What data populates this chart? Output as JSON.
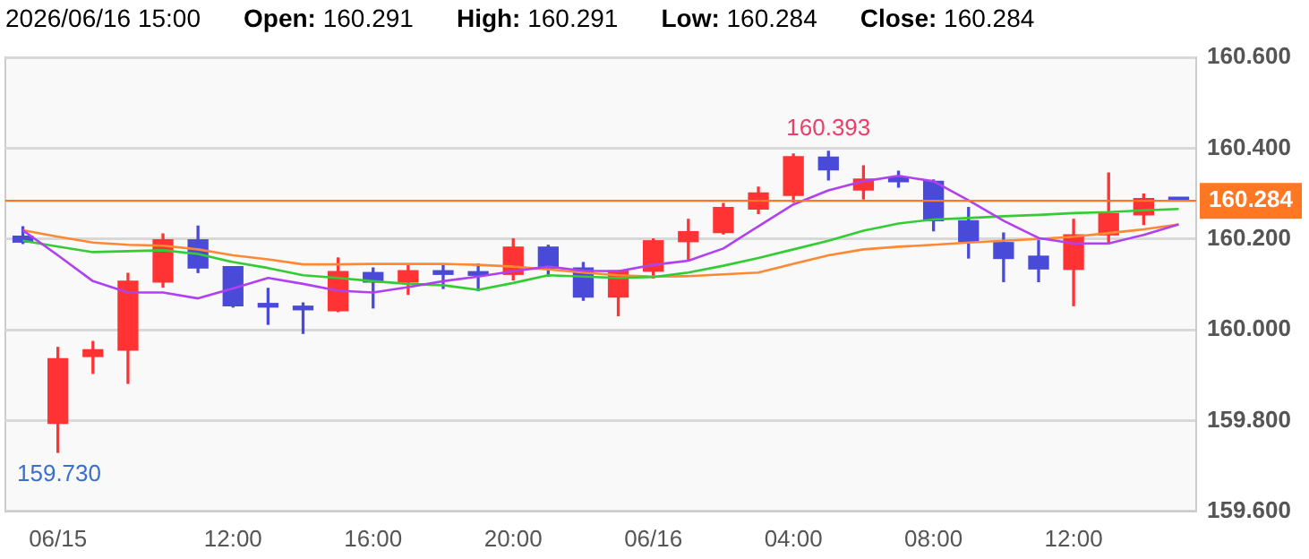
{
  "chart_data": {
    "type": "candlestick",
    "title": "2026/06/16 15:00",
    "annotations": [
      "Open: 160.291",
      "High: 160.291",
      "Low: 160.284",
      "Close: 160.284",
      {
        "text": "160.393",
        "y": 160.393
      },
      {
        "text": "159.730",
        "y": 159.73
      }
    ],
    "categories": [
      null,
      "06/15",
      null,
      null,
      null,
      null,
      "12:00",
      null,
      null,
      null,
      "16:00",
      null,
      null,
      null,
      "20:00",
      null,
      null,
      null,
      "06/16",
      null,
      null,
      null,
      "04:00",
      null,
      null,
      null,
      "08:00",
      null,
      null,
      null,
      "12:00",
      null,
      null,
      null
    ],
    "ohlc": [
      [
        160.206,
        160.227,
        160.19,
        160.193
      ],
      [
        159.794,
        159.961,
        159.73,
        159.936
      ],
      [
        159.941,
        159.974,
        159.904,
        159.956
      ],
      [
        159.955,
        160.124,
        159.882,
        160.107
      ],
      [
        160.105,
        160.211,
        160.094,
        160.198
      ],
      [
        160.198,
        160.228,
        160.126,
        160.136
      ],
      [
        160.139,
        160.139,
        160.05,
        160.053
      ],
      [
        160.055,
        160.091,
        160.012,
        160.05
      ],
      [
        160.05,
        160.059,
        159.992,
        160.044
      ],
      [
        160.042,
        160.158,
        160.04,
        160.128
      ],
      [
        160.126,
        160.136,
        160.048,
        160.105
      ],
      [
        160.105,
        160.145,
        160.078,
        160.13
      ],
      [
        160.13,
        160.141,
        160.091,
        160.122
      ],
      [
        160.125,
        160.145,
        160.086,
        160.12
      ],
      [
        160.122,
        160.2,
        160.11,
        160.182
      ],
      [
        160.182,
        160.186,
        160.118,
        160.136
      ],
      [
        160.136,
        160.148,
        160.065,
        160.072
      ],
      [
        160.072,
        160.13,
        160.031,
        160.13
      ],
      [
        160.129,
        160.2,
        160.114,
        160.196
      ],
      [
        160.194,
        160.243,
        160.152,
        160.216
      ],
      [
        160.214,
        160.278,
        160.211,
        160.269
      ],
      [
        160.266,
        160.314,
        160.256,
        160.301
      ],
      [
        160.296,
        160.387,
        160.281,
        160.381
      ],
      [
        160.38,
        160.393,
        160.33,
        160.352
      ],
      [
        160.308,
        160.361,
        160.288,
        160.332
      ],
      [
        160.336,
        160.349,
        160.314,
        160.326
      ],
      [
        160.327,
        160.33,
        160.218,
        160.24
      ],
      [
        160.24,
        160.269,
        160.158,
        160.194
      ],
      [
        160.192,
        160.213,
        160.106,
        160.157
      ],
      [
        160.162,
        160.196,
        160.106,
        160.134
      ],
      [
        160.133,
        160.243,
        160.053,
        160.209
      ],
      [
        160.209,
        160.345,
        160.19,
        160.256
      ],
      [
        160.253,
        160.299,
        160.232,
        160.289
      ],
      [
        160.291,
        160.291,
        160.284,
        160.284
      ]
    ],
    "colors": [
      "#4a4ad8",
      "#ff3333",
      "#ff3333",
      "#ff3333",
      "#ff3333",
      "#4a4ad8",
      "#4a4ad8",
      "#4a4ad8",
      "#4a4ad8",
      "#ff3333",
      "#4a4ad8",
      "#ff3333",
      "#4a4ad8",
      "#4a4ad8",
      "#ff3333",
      "#4a4ad8",
      "#4a4ad8",
      "#ff3333",
      "#ff3333",
      "#ff3333",
      "#ff3333",
      "#ff3333",
      "#ff3333",
      "#4a4ad8",
      "#ff3333",
      "#4a4ad8",
      "#4a4ad8",
      "#4a4ad8",
      "#4a4ad8",
      "#4a4ad8",
      "#ff3333",
      "#ff3333",
      "#ff3333",
      "#4a4ad8"
    ],
    "series": [
      {
        "type": "line",
        "color": "#b040f0",
        "values": [
          160.219,
          160.164,
          160.107,
          160.082,
          160.082,
          160.069,
          160.091,
          160.114,
          160.101,
          160.086,
          160.082,
          160.094,
          160.107,
          160.117,
          160.129,
          160.139,
          160.13,
          160.129,
          160.143,
          160.152,
          160.179,
          160.228,
          160.276,
          160.307,
          160.327,
          160.339,
          160.327,
          160.285,
          160.24,
          160.202,
          160.19,
          160.19,
          160.209,
          160.232
        ]
      },
      {
        "type": "line",
        "color": "#33cc33",
        "values": [
          160.196,
          160.183,
          160.171,
          160.173,
          160.175,
          160.167,
          160.149,
          160.136,
          160.12,
          160.114,
          160.107,
          160.101,
          160.098,
          160.088,
          160.103,
          160.12,
          160.117,
          160.114,
          160.116,
          160.126,
          160.141,
          160.158,
          160.177,
          160.196,
          160.218,
          160.234,
          160.243,
          160.246,
          160.25,
          160.253,
          160.257,
          160.259,
          160.263,
          160.266
        ]
      },
      {
        "type": "line",
        "color": "#ff8833",
        "values": [
          160.219,
          160.205,
          160.192,
          160.187,
          160.185,
          160.177,
          160.164,
          160.155,
          160.144,
          160.144,
          160.145,
          160.145,
          160.145,
          160.143,
          160.139,
          160.133,
          160.126,
          160.12,
          160.117,
          160.118,
          160.122,
          160.126,
          160.145,
          160.164,
          160.177,
          160.183,
          160.187,
          160.192,
          160.196,
          160.2,
          160.205,
          160.213,
          160.221,
          160.232
        ]
      }
    ],
    "ref_lines": [
      {
        "axis": "y",
        "value": 160.284,
        "label": "160.284",
        "color": "#ff7722"
      }
    ],
    "ylim": [
      159.6,
      160.6
    ],
    "yticks": [
      {
        "value": 159.6,
        "label": "159.600"
      },
      {
        "value": 159.8,
        "label": "159.800"
      },
      {
        "value": 160.0,
        "label": "160.000"
      },
      {
        "value": 160.2,
        "label": "160.200"
      },
      {
        "value": 160.4,
        "label": "160.400"
      },
      {
        "value": 160.6,
        "label": "160.600"
      }
    ],
    "grid": "y",
    "legend": false
  }
}
